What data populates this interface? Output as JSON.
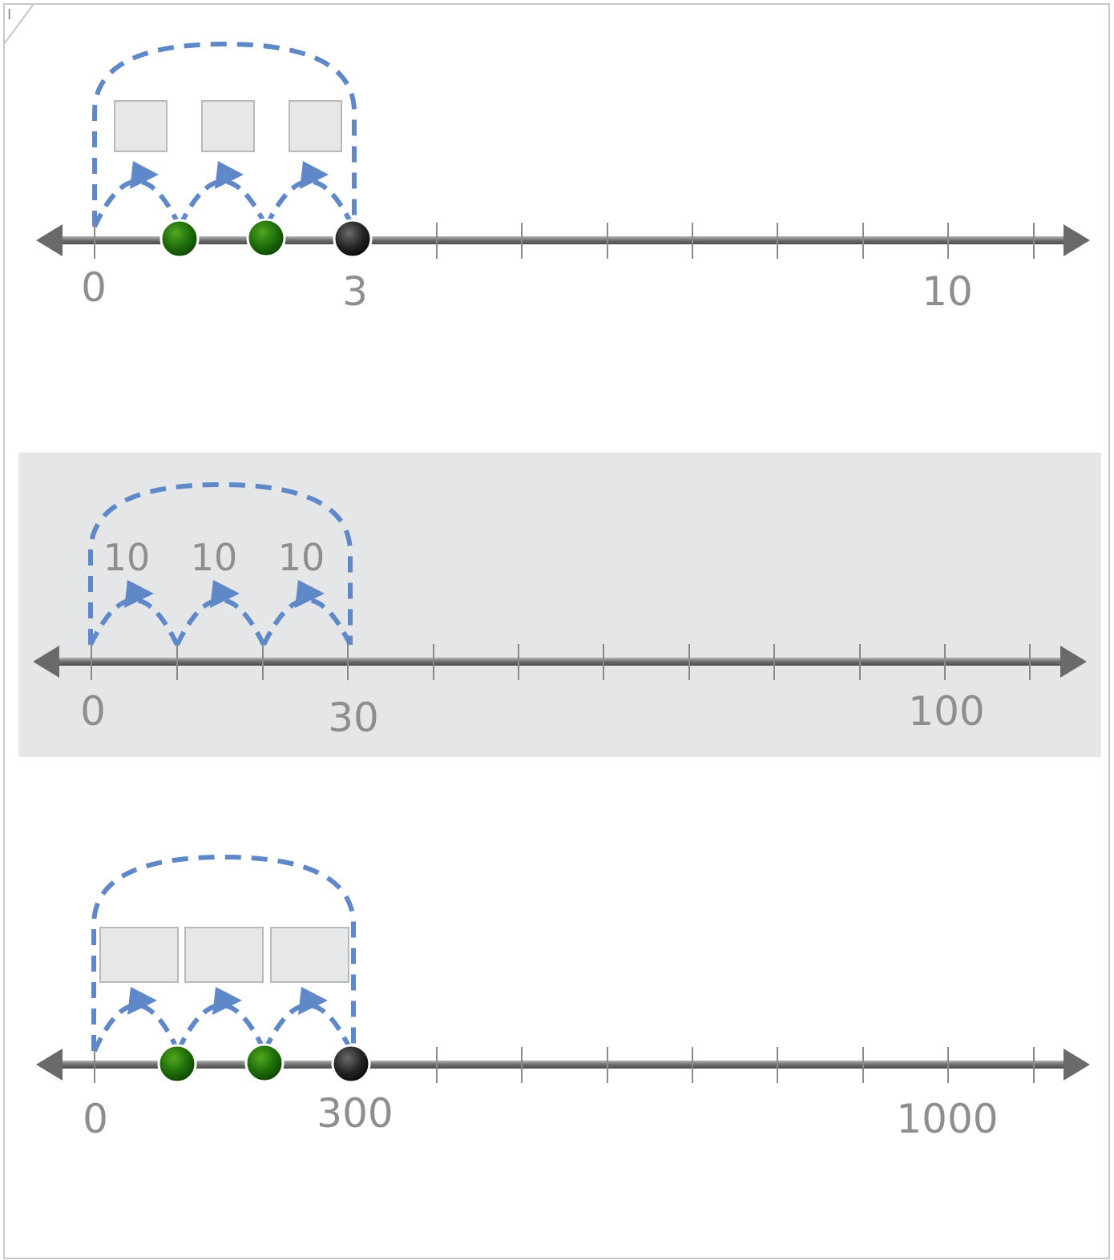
{
  "corner_mark": "I",
  "colors": {
    "dash": "#5f88c8",
    "axis": "#777777",
    "tick": "#8a8a8a",
    "label": "#8e8e8e",
    "green_dot": "#1f7a0a",
    "black_dot": "#1a1a1a",
    "answer_box_fill": "#e6e7e9",
    "answer_box_stroke": "#b9b9b9",
    "band": "#e5e6e8",
    "frame": "#c8c8c8"
  },
  "number_lines": [
    {
      "id": "ones",
      "start_label": "0",
      "mid_label": "3",
      "end_label": "10",
      "jump_labels": [],
      "answer_boxes": 3,
      "dots": [
        "green",
        "green",
        "black"
      ],
      "highlighted": false
    },
    {
      "id": "tens",
      "start_label": "0",
      "mid_label": "30",
      "end_label": "100",
      "jump_labels": [
        "10",
        "10",
        "10"
      ],
      "answer_boxes": 0,
      "dots": [],
      "highlighted": true
    },
    {
      "id": "hundreds",
      "start_label": "0",
      "mid_label": "300",
      "end_label": "1000",
      "jump_labels": [],
      "answer_boxes": 3,
      "dots": [
        "green",
        "green",
        "black"
      ],
      "highlighted": false
    }
  ]
}
